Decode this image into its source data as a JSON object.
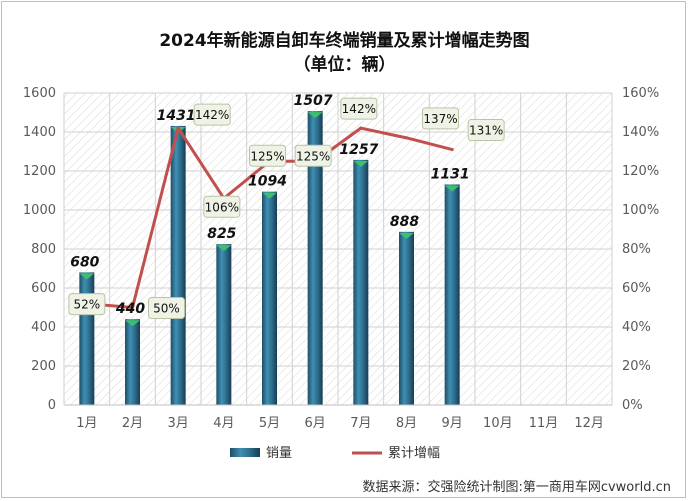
{
  "title_line1": "2024年新能源自卸车终端销量及累计增幅走势图",
  "title_line2": "（单位：辆）",
  "source": "数据来源：交强险统计制图:第一商用车网cvworld.cn",
  "colors": {
    "bar": "#2e6e8e",
    "bar_light": "#3f8fb2",
    "bar_top": "#3cc06a",
    "line": "#c0504d"
  },
  "chart_data": {
    "type": "bar",
    "title": "2024年新能源自卸车终端销量及累计增幅走势图",
    "subtitle": "（单位：辆）",
    "categories": [
      "1月",
      "2月",
      "3月",
      "4月",
      "5月",
      "6月",
      "7月",
      "8月",
      "9月",
      "10月",
      "11月",
      "12月"
    ],
    "series": [
      {
        "name": "销量",
        "type": "bar",
        "axis": "left",
        "values": [
          680,
          440,
          1431,
          825,
          1094,
          1507,
          1257,
          888,
          1131,
          null,
          null,
          null
        ]
      },
      {
        "name": "累计增幅",
        "type": "line",
        "axis": "right",
        "values": [
          52,
          50,
          142,
          106,
          125,
          125,
          142,
          137,
          131,
          null,
          null,
          null
        ]
      }
    ],
    "bar_labels": [
      "680",
      "440",
      "1431",
      "825",
      "1094",
      "1507",
      "1257",
      "888",
      "1131"
    ],
    "line_labels": [
      "52%",
      "50%",
      "142%",
      "106%",
      "125%",
      "125%",
      "142%",
      "137%",
      "131%"
    ],
    "ylim_left": [
      0,
      1600
    ],
    "ylim_right": [
      0,
      160
    ],
    "yticks_left": [
      "0",
      "200",
      "400",
      "600",
      "800",
      "1000",
      "1200",
      "1400",
      "1600"
    ],
    "yticks_right": [
      "0%",
      "20%",
      "40%",
      "60%",
      "80%",
      "100%",
      "120%",
      "140%",
      "160%"
    ],
    "legend": [
      "销量",
      "累计增幅"
    ],
    "legend_position": "bottom",
    "grid": true
  }
}
